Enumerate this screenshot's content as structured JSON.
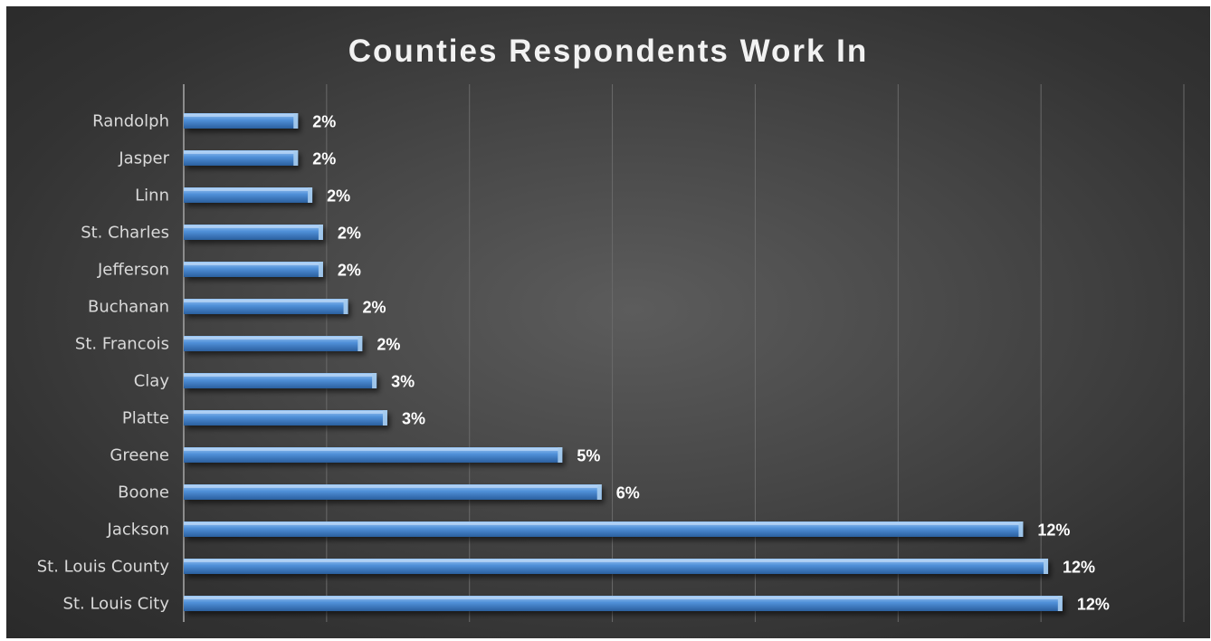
{
  "chart_data": {
    "type": "bar",
    "orientation": "horizontal",
    "title": "Counties Respondents Work In",
    "categories": [
      "Randolph",
      "Jasper",
      "Linn",
      "St. Charles",
      "Jefferson",
      "Buchanan",
      "St. Francois",
      "Clay",
      "Platte",
      "Greene",
      "Boone",
      "Jackson",
      "St. Louis County",
      "St. Louis City"
    ],
    "values": [
      1.6,
      1.6,
      1.8,
      1.95,
      1.95,
      2.3,
      2.5,
      2.7,
      2.85,
      5.3,
      5.85,
      11.75,
      12.1,
      12.3
    ],
    "data_labels": [
      "2%",
      "2%",
      "2%",
      "2%",
      "2%",
      "2%",
      "2%",
      "3%",
      "3%",
      "5%",
      "6%",
      "12%",
      "12%",
      "12%"
    ],
    "xlim": [
      0,
      14
    ],
    "grid": true,
    "legend": "none",
    "colors": {
      "bar_top": "#9cc8f5",
      "bar_mid": "#4f8fd8",
      "bar_bottom": "#2b5f9e",
      "bar_cap": "#a9cdee",
      "grid": "#6a6a6a",
      "axis": "#8c8c8c",
      "text": "#d9d9d9",
      "title": "#f2f2f2"
    }
  }
}
